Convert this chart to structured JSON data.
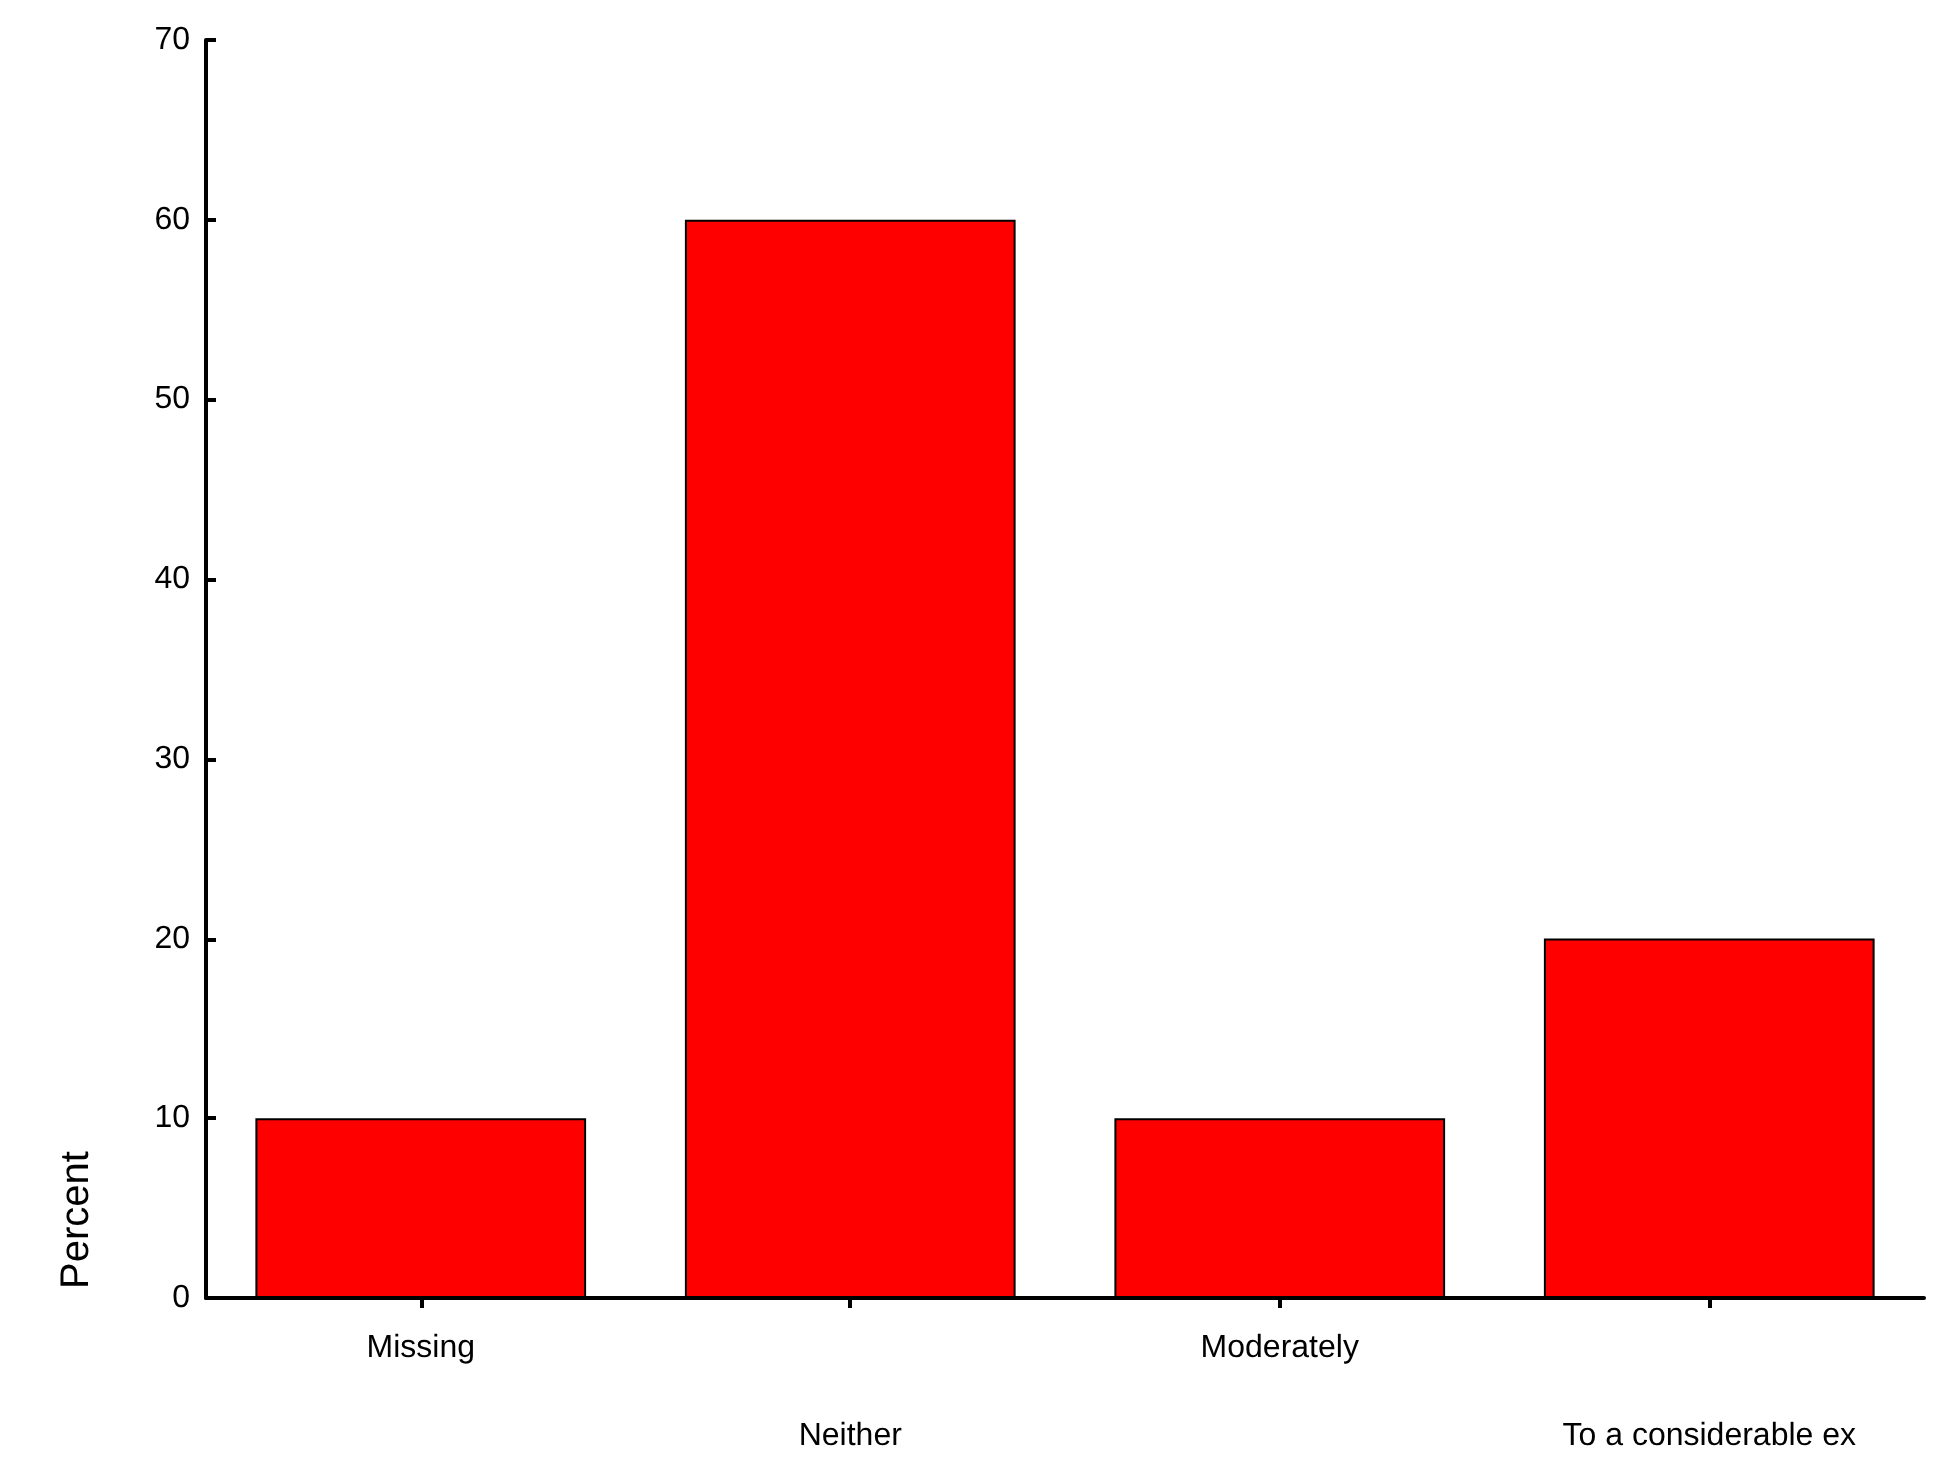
{
  "chart_data": {
    "type": "bar",
    "ylabel": "Percent",
    "categories": [
      "Missing",
      "Neither",
      "Moderately",
      "To a considerable ex"
    ],
    "values": [
      10,
      60,
      10,
      20
    ],
    "color": "#ff0000",
    "ylim": [
      0,
      70
    ],
    "yticks": [
      0,
      10,
      20,
      30,
      40,
      50,
      60,
      70
    ],
    "grid": false
  }
}
